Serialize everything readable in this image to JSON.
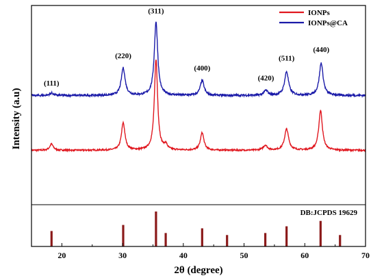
{
  "chart_data": {
    "type": "line",
    "xlabel": "2θ (degree)",
    "ylabel": "Intensity (a.u)",
    "xlim": [
      15,
      70
    ],
    "x_ticks": [
      20,
      30,
      40,
      50,
      60,
      70
    ],
    "y_ticks": [],
    "grid": false,
    "legend_placement": "top-right",
    "series": [
      {
        "name": "IONPs",
        "color": "#e0161e",
        "baseline": 0.42,
        "noise": 0.006,
        "peaks": [
          {
            "x": 18.3,
            "height": 0.05,
            "width": 0.35
          },
          {
            "x": 30.1,
            "height": 0.22,
            "width": 0.35
          },
          {
            "x": 35.5,
            "height": 0.73,
            "width": 0.32
          },
          {
            "x": 37.1,
            "height": 0.04,
            "width": 0.3
          },
          {
            "x": 43.1,
            "height": 0.14,
            "width": 0.35
          },
          {
            "x": 53.5,
            "height": 0.04,
            "width": 0.4
          },
          {
            "x": 57.0,
            "height": 0.17,
            "width": 0.4
          },
          {
            "x": 62.6,
            "height": 0.32,
            "width": 0.36
          }
        ]
      },
      {
        "name": "IONPs@CA",
        "color": "#1a1aa8",
        "baseline": 0.86,
        "noise": 0.008,
        "peaks": [
          {
            "x": 18.3,
            "height": 0.02,
            "width": 0.35
          },
          {
            "x": 30.1,
            "height": 0.22,
            "width": 0.38
          },
          {
            "x": 35.5,
            "height": 0.59,
            "width": 0.34
          },
          {
            "x": 43.1,
            "height": 0.12,
            "width": 0.38
          },
          {
            "x": 53.6,
            "height": 0.04,
            "width": 0.4
          },
          {
            "x": 57.0,
            "height": 0.19,
            "width": 0.4
          },
          {
            "x": 62.7,
            "height": 0.26,
            "width": 0.38
          }
        ]
      }
    ],
    "peak_labels": [
      {
        "text": "(111)",
        "x": 18.3,
        "y": 0.94
      },
      {
        "text": "(220)",
        "x": 30.1,
        "y": 1.16
      },
      {
        "text": "(311)",
        "x": 35.5,
        "y": 1.52
      },
      {
        "text": "(400)",
        "x": 43.1,
        "y": 1.06
      },
      {
        "text": "(420)",
        "x": 53.6,
        "y": 0.98
      },
      {
        "text": "(511)",
        "x": 57.0,
        "y": 1.14
      },
      {
        "text": "(440)",
        "x": 62.7,
        "y": 1.21
      }
    ],
    "reference": {
      "label": "DB:JCPDS 19629",
      "color": "#8b1a1a",
      "lines": [
        {
          "x": 18.3,
          "height": 0.23
        },
        {
          "x": 30.1,
          "height": 0.32
        },
        {
          "x": 35.5,
          "height": 0.52
        },
        {
          "x": 37.1,
          "height": 0.2
        },
        {
          "x": 43.1,
          "height": 0.27
        },
        {
          "x": 47.2,
          "height": 0.17
        },
        {
          "x": 53.5,
          "height": 0.2
        },
        {
          "x": 57.0,
          "height": 0.3
        },
        {
          "x": 62.6,
          "height": 0.38
        },
        {
          "x": 65.8,
          "height": 0.17
        }
      ]
    }
  }
}
